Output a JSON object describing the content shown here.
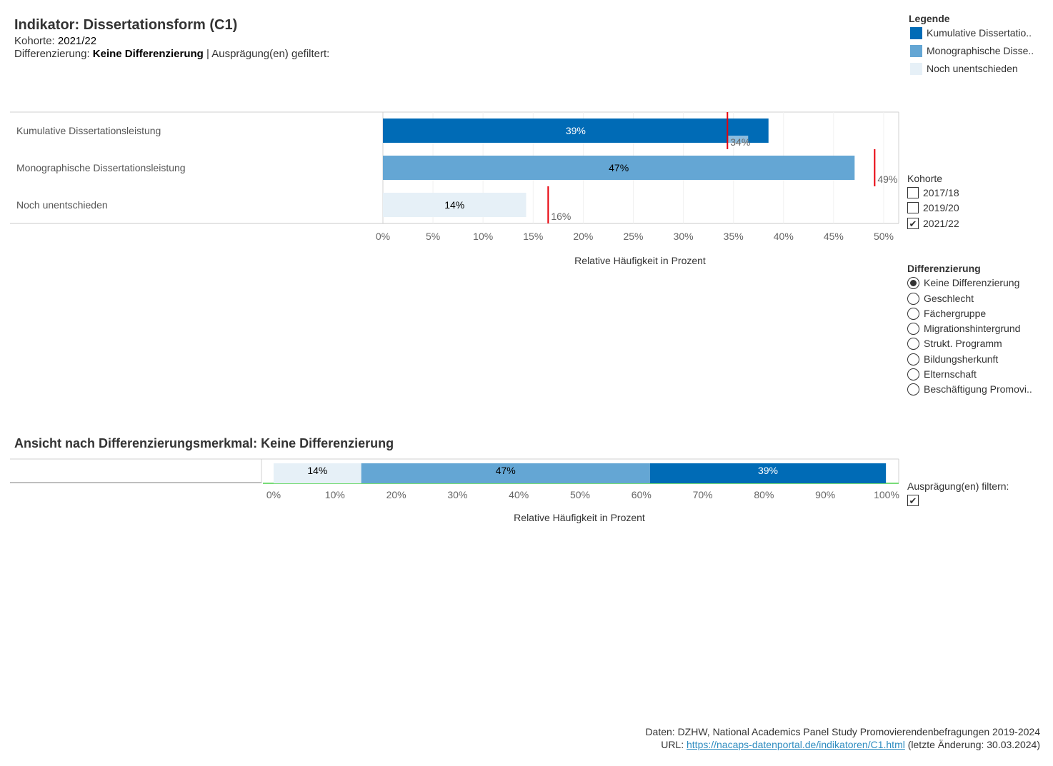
{
  "header": {
    "title": "Indikator: Dissertationsform (C1)",
    "kohorte_label": "Kohorte:",
    "kohorte_value": "2021/22",
    "diff_label": "Differenzierung:",
    "diff_value": "Keine Differenzierung",
    "filter_text": "| Ausprägung(en) gefiltert:"
  },
  "legend": {
    "title": "Legende",
    "items": [
      {
        "label": "Kumulative Dissertatio..",
        "color": "#006bb6"
      },
      {
        "label": "Monographische Disse..",
        "color": "#64a6d4"
      },
      {
        "label": "Noch unentschieden",
        "color": "#e6f0f7"
      }
    ]
  },
  "kohorte_filter": {
    "title": "Kohorte",
    "options": [
      {
        "label": "2017/18",
        "checked": false
      },
      {
        "label": "2019/20",
        "checked": false
      },
      {
        "label": "2021/22",
        "checked": true
      }
    ]
  },
  "differenzierung_filter": {
    "title": "Differenzierung",
    "options": [
      {
        "label": "Keine Differenzierung",
        "selected": true
      },
      {
        "label": "Geschlecht",
        "selected": false
      },
      {
        "label": "Fächergruppe",
        "selected": false
      },
      {
        "label": "Migrationshintergrund",
        "selected": false
      },
      {
        "label": "Strukt. Programm",
        "selected": false
      },
      {
        "label": "Bildungsherkunft",
        "selected": false
      },
      {
        "label": "Elternschaft",
        "selected": false
      },
      {
        "label": "Beschäftigung Promovi..",
        "selected": false
      }
    ]
  },
  "auspraegung_filter": {
    "title": "Ausprägung(en) filtern:",
    "checked": true
  },
  "section2_title": "Ansicht nach Differenzierungsmerkmal: Keine Differenzierung",
  "chart_data": [
    {
      "type": "bar",
      "orientation": "horizontal",
      "categories": [
        "Kumulative Dissertationsleistung",
        "Monographische Dissertationsleistung",
        "Noch unentschieden"
      ],
      "values": [
        38.5,
        47.1,
        14.3
      ],
      "value_labels": [
        "39%",
        "47%",
        "14%"
      ],
      "colors": [
        "#006bb6",
        "#64a6d4",
        "#e6f0f7"
      ],
      "label_colors": [
        "#ffffff",
        "#000000",
        "#000000"
      ],
      "reference_values": [
        34.4,
        49.1,
        16.5
      ],
      "reference_labels": [
        "34%",
        "49%",
        "16%"
      ],
      "reference_color": "#e8000b",
      "xlabel": "Relative Häufigkeit in Prozent",
      "xlim": [
        0,
        51.5
      ],
      "xticks": [
        0,
        5,
        10,
        15,
        20,
        25,
        30,
        35,
        40,
        45,
        50
      ],
      "xtick_labels": [
        "0%",
        "5%",
        "10%",
        "15%",
        "20%",
        "25%",
        "30%",
        "35%",
        "40%",
        "45%",
        "50%"
      ],
      "grid": true
    },
    {
      "type": "bar",
      "orientation": "horizontal",
      "stacked": true,
      "segments": [
        {
          "label": "14%",
          "value": 14.3,
          "color": "#e6f0f7",
          "label_color": "#000000"
        },
        {
          "label": "47%",
          "value": 47.1,
          "color": "#64a6d4",
          "label_color": "#000000"
        },
        {
          "label": "39%",
          "value": 38.5,
          "color": "#006bb6",
          "label_color": "#ffffff"
        }
      ],
      "xlabel": "Relative Häufigkeit in Prozent",
      "xlim": [
        0,
        100
      ],
      "xticks": [
        0,
        10,
        20,
        30,
        40,
        50,
        60,
        70,
        80,
        90,
        100
      ],
      "xtick_labels": [
        "0%",
        "10%",
        "20%",
        "30%",
        "40%",
        "50%",
        "60%",
        "70%",
        "80%",
        "90%",
        "100%"
      ]
    }
  ],
  "footer": {
    "source": "Daten: DZHW, National Academics Panel Study Promovierendenbefragungen 2019-2024",
    "url_label": "URL:",
    "url": "https://nacaps-datenportal.de/indikatoren/C1.html",
    "change_note": "(letzte Änderung: 30.03.2024)"
  }
}
